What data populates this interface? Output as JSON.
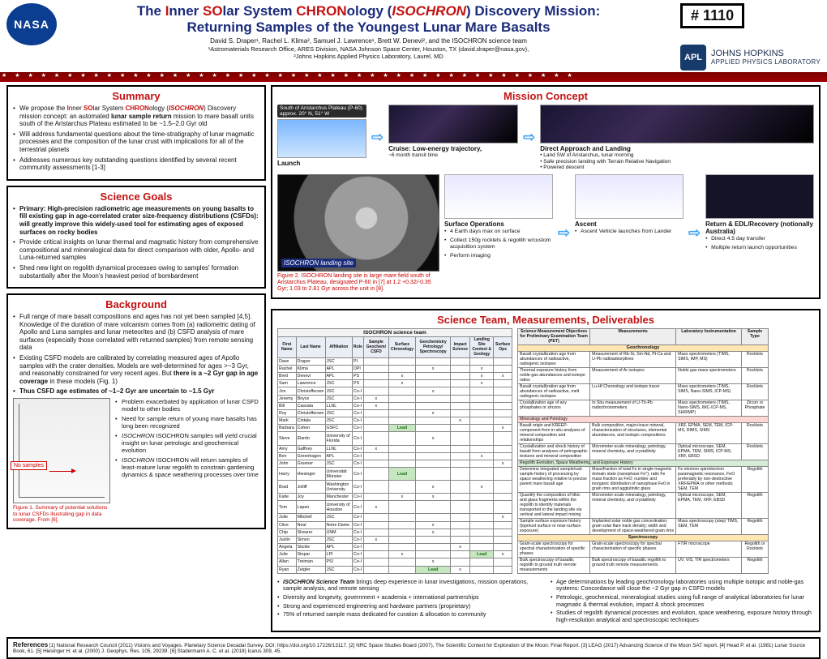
{
  "poster_number_prefix": "# ",
  "poster_number": "1110",
  "title_parts": {
    "p1": "The ",
    "p2": "I",
    "p3": "nner ",
    "p4": "SO",
    "p5": "lar System ",
    "p6": "CHRON",
    "p7": "ology (",
    "p8": "ISOCHRON",
    "p9": ") Discovery Mission:",
    "line2": "Returning Samples of the Youngest Lunar Mare Basalts"
  },
  "authors": "David S. Draper¹, Rachel L. Klima², Samuel J. Lawrence¹, Brett W. Denevi², and the ISOCHRON science team",
  "affil1": "¹Astromaterials Research Office, ARES Division, NASA Johnson Space Center, Houston, TX (david.draper@nasa.gov),",
  "affil2": "²Johns Hopkins Applied Physics Laboratory, Laurel, MD",
  "apl": {
    "badge": "APL",
    "line1": "JOHNS HOPKINS",
    "line2": "APPLIED PHYSICS LABORATORY"
  },
  "summary": {
    "h": "Summary",
    "b1a": "We propose the ",
    "b1b": "I",
    "b1c": "nner ",
    "b1d": "SO",
    "b1e": "lar System ",
    "b1f": "CHRON",
    "b1g": "ology (",
    "b1h": "ISOCHRON",
    "b1i": ") Discovery mission concept: an automated ",
    "b1j": "lunar sample return",
    "b1k": " mission to mare basalt units south of the Aristarchus Plateau estimated to be ~1.5–2.0 Gyr old",
    "b2": "Will address fundamental questions about the time-stratigraphy of lunar magmatic processes and the composition of the lunar crust with implications for all of the terrestrial planets",
    "b3": "Addresses numerous key outstanding questions identified by several recent community assessments [1-3]"
  },
  "goals": {
    "h": "Science Goals",
    "b1": "Primary: High-precision radiometric age measurements on young basalts to fill existing gap in age-correlated crater size-frequency distributions (CSFDs): will greatly improve this widely-used tool for estimating ages of exposed surfaces on rocky bodies",
    "b2": "Provide critical insights on lunar thermal and magmatic history from comprehensive compositional and mineralogical data for direct comparison with older, Apollo- and Luna-returned samples",
    "b3": "Shed new light on regolith dynamical processes owing to samples' formation substantially after the Moon's heaviest period of bombardment"
  },
  "background": {
    "h": "Background",
    "b1": "Full range of mare basalt compositions and ages has not yet been sampled [4,5]. Knowledge of the duration of mare volcanism comes from (a) radiometric dating of Apollo and Luna samples and lunar meteorites and (b) CSFD analysis of mare surfaces (especially those correlated with returned samples) from remote sensing data",
    "b2": "Existing CSFD models are calibrated by correlating measured ages of Apollo samples with the crater densities. Models are well-determined for ages >~3 Gyr, and reasonably constrained for very recent ages. But ",
    "b2em": "there is a ~2 Gyr gap in age coverage",
    "b2tail": " in these models (Fig. 1)",
    "b3": "Thus CSFD age estimates of ~1–2 Gyr are uncertain to ~1.5 Gyr",
    "side": [
      "Problem exacerbated by application of lunar CSFD model to other bodies",
      "Need for sample return of young mare basalts has long been recognized",
      "ISOCHRON samples will yield crucial insight on lunar petrologic and geochemical evolution",
      "ISOCHRON will return samples of least-mature lunar regolith to constrain gardening dynamics & space weathering processes over time"
    ],
    "fig_nosamples": "No samples",
    "figcap": "Figure 1. Summary of potential solutions to lunar CSFDs illustrating gap in data coverage. From [6]."
  },
  "mission": {
    "h": "Mission Concept",
    "pill": "South of Aristarchus Plateau (P-60) approx. 20° N, 51° W",
    "row1": [
      {
        "t": "Launch",
        "s": ""
      },
      {
        "t": "Cruise: Low-energy trajectory,",
        "s": "~6 month transit time"
      },
      {
        "t": "Direct Approach and Landing",
        "s": "• Land SW of Aristarchus, lunar morning\n• Safe precision landing with Terrain Relative Navigation\n• Powered descent"
      }
    ],
    "landing": {
      "tag": "ISOCHRON landing site",
      "cap": "Figure 2. ISOCHRON landing site is large mare field south of Aristarchus Plateau, designated P-60 in [7] at 1.2 +0.32/-0.35 Gyr; 1.03 to 2.81 Gyr across the unit in [8]."
    },
    "lower": [
      {
        "t": "Surface Operations",
        "items": [
          "4 Earth days max on surface",
          "Collect 150g rocklets & regolith w/custom acquisition system",
          "Perform imaging"
        ]
      },
      {
        "t": "Ascent",
        "items": [
          "Ascent Vehicle launches from Lander"
        ]
      },
      {
        "t": "Return & EDL/Recovery (notionally Australia)",
        "items": [
          "Direct 4.5 day transfer",
          "Multiple return launch opportunities"
        ]
      }
    ]
  },
  "sci": {
    "h": "Science Team, Measurements, Deliverables",
    "team_caption": "ISOCHRON science team",
    "team_head": [
      "First Name",
      "Last Name",
      "Affiliation",
      "Role",
      "Sample Geochem/ CSFD",
      "Surface Chronology",
      "Geochemistry Petrology/ Spectroscopy",
      "Impact Science",
      "Landing Site Context & Geology",
      "Surface Ops"
    ],
    "team": [
      [
        "Dave",
        "Draper",
        "JSC",
        "PI",
        "",
        "",
        "",
        "",
        "",
        ""
      ],
      [
        "Rachel",
        "Klima",
        "APL",
        "DPI",
        "",
        "",
        "x",
        "",
        "x",
        ""
      ],
      [
        "Brett",
        "Denevi",
        "APL",
        "PS",
        "",
        "x",
        "",
        "",
        "x",
        "x"
      ],
      [
        "Sam",
        "Lawrence",
        "JSC",
        "PS",
        "",
        "x",
        "",
        "",
        "x",
        ""
      ],
      [
        "Jon",
        "Christoffersen",
        "JSC",
        "Co-I",
        "",
        "",
        "x",
        "",
        "",
        ""
      ],
      [
        "Jeremy",
        "Boyce",
        "JSC",
        "Co-I",
        "x",
        "",
        "",
        "",
        "",
        ""
      ],
      [
        "Bill",
        "Cassata",
        "LLNL",
        "Co-I",
        "x",
        "",
        "",
        "",
        "",
        ""
      ],
      [
        "Roy",
        "Christoffersen",
        "JSC",
        "Co-I",
        "",
        "",
        "x",
        "",
        "",
        ""
      ],
      [
        "Mark",
        "Cintala",
        "JSC",
        "Co-I",
        "",
        "",
        "",
        "x",
        "",
        ""
      ],
      [
        "Barbara",
        "Cohen",
        "GSFC",
        "Co-I",
        "",
        "LEAD",
        "",
        "",
        "",
        "x"
      ],
      [
        "Steve",
        "Elardo",
        "University of Florida",
        "Co-I",
        "",
        "",
        "x",
        "",
        "",
        ""
      ],
      [
        "Amy",
        "Gaffney",
        "LLNL",
        "Co-I",
        "x",
        "",
        "",
        "",
        "",
        ""
      ],
      [
        "Ben",
        "Greenhagen",
        "APL",
        "Co-I",
        "",
        "",
        "",
        "",
        "x",
        ""
      ],
      [
        "John",
        "Gruener",
        "JSC",
        "Co-I",
        "",
        "",
        "",
        "",
        "",
        "x"
      ],
      [
        "Harry",
        "Hiesinger",
        "Universität Münster",
        "Co-I",
        "",
        "LEAD",
        "",
        "",
        "",
        ""
      ],
      [
        "Brad",
        "Jolliff",
        "Washington University",
        "Co-I",
        "",
        "",
        "x",
        "",
        "x",
        ""
      ],
      [
        "Katie",
        "Joy",
        "Manchester",
        "Co-I",
        "",
        "x",
        "x",
        "",
        "",
        ""
      ],
      [
        "Tom",
        "Lapen",
        "University of Houston",
        "Co-I",
        "x",
        "",
        "",
        "",
        "",
        ""
      ],
      [
        "Julie",
        "Mitchell",
        "JSC",
        "Co-I",
        "",
        "",
        "",
        "",
        "",
        "x"
      ],
      [
        "Clive",
        "Neal",
        "Notre Dame",
        "Co-I",
        "",
        "",
        "x",
        "",
        "",
        ""
      ],
      [
        "Chip",
        "Shearer",
        "UNM",
        "Co-I",
        "",
        "",
        "x",
        "",
        "",
        ""
      ],
      [
        "Justin",
        "Simon",
        "JSC",
        "Co-I",
        "x",
        "",
        "",
        "",
        "",
        ""
      ],
      [
        "Angela",
        "Stickle",
        "APL",
        "Co-I",
        "",
        "",
        "",
        "x",
        "",
        ""
      ],
      [
        "Julie",
        "Stopar",
        "LPI",
        "Co-I",
        "",
        "x",
        "",
        "",
        "LEAD",
        "x"
      ],
      [
        "Allan",
        "Treiman",
        "PSI",
        "Co-I",
        "",
        "",
        "x",
        "",
        "",
        ""
      ],
      [
        "Ryan",
        "Zeigler",
        "JSC",
        "Co-I",
        "",
        "",
        "LEAD",
        "x",
        "",
        ""
      ]
    ],
    "obj_head": [
      "Science Measurement Objectives for Preliminary Examination Team (PET)",
      "Measurements",
      "Laboratory Instrumentation",
      "Sample Type"
    ],
    "bands": [
      {
        "name": "Geochronology",
        "cls": "band",
        "rows": [
          [
            "Basalt crystallization age from abundances of radioactive, radiogenic isotopes",
            "Measurement of Rb-Sr, Sm-Nd, Pt-Ca and U-Pb radioadsorptives",
            "Mass spectrometers (TIMS, SIMS, IMP, MS)",
            "Rocklets"
          ],
          [
            "Thermal exposure history from noble-gas abundances and isotope ratios",
            "Measurement of Ar isotopes",
            "Noble gas mass spectrometers",
            "Rocklets"
          ],
          [
            "Basalt crystallization age from abundances of radioactive, melt radiogenic isotopes",
            "Lu-Hf Chronology and isotope tracer",
            "Mass spectrometers (TIMS, SIMS, Nano-SIMS, ICP-MS)",
            "Rocklets"
          ],
          [
            "Crystallization age of any phosphates or zircons",
            "In Situ measurement of U-Th-Pb radiochronometers",
            "Mass spectrometers (TIMS, Nano-SIMS, IMC-ICP-MS, SHRIMP)",
            "Zircon or Phosphate"
          ]
        ]
      },
      {
        "name": "Mineralogy and Petrology",
        "cls": "band2",
        "rows": [
          [
            "Basalt origin and KREEP-component from in-situ analyses of mineral composition and relationships",
            "Bulk composition, major+trace mineral, characterization of structures, elemental abundances, and isotopic compositions",
            "XRF, EPMA, SEM, TEM, ICP-MS, RIMS, SIMS",
            "Rocklets"
          ],
          [
            "Crystallization and shock history of basalt from analyses of petrographic textures and mineral composition",
            "Micrometer-scale mineralogy, petrology, mineral chemistry, and crystallinity",
            "Optical microscope, SEM, EPMA, TEM, SIMS, ICP-MS, XRF, EBSD",
            "Rocklets"
          ]
        ]
      },
      {
        "name": "Regolith Evolution, Space Weathering, and Exposure History",
        "cls": "band3",
        "rows": [
          [
            "Determine integrated sample/sub-sample history of processing by space weathering relative to precise parent mare basalt age",
            "Mass/fraction of total Fe in single magnetic domain state (nanophase Fe°); ratio Fe mass fraction as FeO; number and inorganic distribution of nanophase Fe0 in grain rims and agglutinitic glass",
            "Fe electron spin/electron paramagnetic resonance, FeO preferably by non-destructive XRF/EPMA or other methods; SEM, TEM",
            "Regolith"
          ],
          [
            "Quantify the composition of lithic and glass fragments within the regolith to identify materials transported to the landing site via vertical and lateral impact mixing",
            "Micrometer-scale mineralogy, petrology, mineral chemistry, and crystallinity",
            "Optical microscope, SEM, EPMA, TEM, XRF, EBSD",
            "Regolith"
          ],
          [
            "Sample surface exposure history (topmost surface or near-surface exposure)",
            "Implanted solar noble gas concentration; grain solar flare track density; width and development of space-weathered grain rims",
            "Mass spectroscopy (step) TIMS, SEM, TEM",
            "Regolith"
          ]
        ]
      },
      {
        "name": "Spectroscopy",
        "cls": "band",
        "rows": [
          [
            "Grain-scale spectroscopy for spectral characterization of specific phases",
            "Grain-scale spectroscopy for spectral characterization of specific phases",
            "FTIR microscope",
            "Regolith or Rocklets"
          ],
          [
            "Bulk spectroscopy of basaltic regolith to ground truth remote measurements",
            "Bulk spectroscopy of basaltic regolith to ground truth remote measurements",
            "UV, VIS, TIR spectrometers",
            "Regolith"
          ]
        ]
      }
    ],
    "bullets_left": [
      "ISOCHRON Science Team brings deep experience in lunar investigations, mission operations, sample analysis, and remote sensing",
      "Diversity and longevity, government + academia + international partnerships",
      "Strong and experienced engineering and hardware partners (proprietary)",
      "75% of returned sample mass dedicated for curation & allocation to community"
    ],
    "bullets_right": [
      "Age determinations by leading geochronology laboratories using multiple isotopic and noble-gas systems: Concordance will close the ~2 Gyr gap in CSFD models",
      "Petrologic, geochemical, mineralogical studies using full range of analytical laboratories for lunar magmatic & thermal evolution, impact & shock processes",
      "Studies of regolith dynamical processes and evolution, space weathering, exposure history through high-resolution analytical and spectroscopic techniques"
    ]
  },
  "refs": {
    "label": "References",
    "text": " [1] National Research Council (2011) Visions and Voyages. Planetary Science Decadal Survey. DOI: https://doi.org/10.17226/13117. [2] NRC Space Studies Board (2007), The Scientific Context for Exploration of the Moon: Final Report. [3] LEAG (2017) Advancing Science of the Moon SAT report. [4] Head P. et al. (1981) Lunar Source Book, 61. [5] Hiesinger H. et al. (2000) J. Geophys. Res. 105, 29239. [6] Stadermann A. C. et al. (2018) Icarus 309, 45."
  },
  "colors": {
    "navy": "#1a2b7a",
    "red": "#c41212",
    "arrow": "#2aa4ff",
    "band1": "#ffe6b3",
    "band2": "#ffd6d6",
    "band3": "#d6ecd6",
    "lead": "#c6e7c0"
  }
}
